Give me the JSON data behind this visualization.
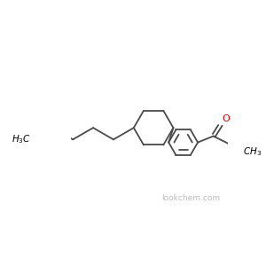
{
  "background_color": "#ffffff",
  "line_color": "#4a4a4a",
  "bond_width": 1.3,
  "text_color": "#000000",
  "oxygen_color": "#cc0000",
  "font_size": 7.5,
  "figsize": [
    3.0,
    3.0
  ],
  "dpi": 100,
  "watermark": "lookchem.com",
  "watermark_color": "#bbbbbb",
  "watermark_fontsize": 6.5
}
